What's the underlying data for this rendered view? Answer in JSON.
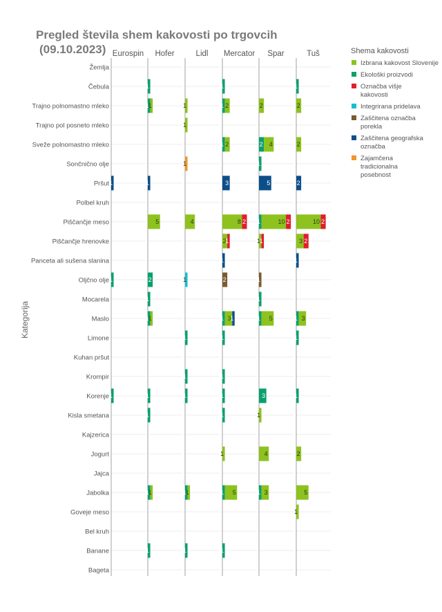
{
  "chart_data": {
    "type": "bar",
    "orientation": "horizontal",
    "stacked": true,
    "title": "Pregled števila shem kakovosti po trgovcih",
    "subtitle": "(09.10.2023)",
    "ylabel": "Kategorija",
    "legend_title": "Shema kakovosti",
    "legend_position": "right",
    "xlim": [
      0,
      12
    ],
    "grid": true,
    "facets": [
      "Eurospin",
      "Hofer",
      "Lidl",
      "Mercator",
      "Spar",
      "Tuš"
    ],
    "categories": [
      "Žemlja",
      "Čebula",
      "Trajno polnomastno mleko",
      "Trajno pol posneto mleko",
      "Sveže polnomastno mleko",
      "Sončnično olje",
      "Pršut",
      "Polbel kruh",
      "Piščančje meso",
      "Piščančje hrenovke",
      "Panceta ali sušena slanina",
      "Oljčno olje",
      "Mocarela",
      "Maslo",
      "Limone",
      "Kuhan pršut",
      "Krompir",
      "Korenje",
      "Kisla smetana",
      "Kajzerica",
      "Jogurt",
      "Jajca",
      "Jabolka",
      "Goveje meso",
      "Bel kruh",
      "Banane",
      "Bageta"
    ],
    "series": [
      {
        "name": "Ekološki proizvodi",
        "color": "#0aa06e"
      },
      {
        "name": "Integrirana pridelava",
        "color": "#17becf"
      },
      {
        "name": "Izbrana kakovost Slovenije",
        "color": "#8dc21f"
      },
      {
        "name": "Zaščitena označba porekla",
        "color": "#7b5a2e"
      },
      {
        "name": "Zaščitena geografska označba",
        "color": "#0b4f8a"
      },
      {
        "name": "Zajamčena tradicionalna posebnost",
        "color": "#f0962d"
      },
      {
        "name": "Označba višje kakovosti",
        "color": "#e01e2a"
      }
    ],
    "legend_order": [
      "Izbrana kakovost Slovenije",
      "Ekološki proizvodi",
      "Označba višje kakovosti",
      "Integrirana pridelava",
      "Zaščitena označba porekla",
      "Zaščitena geografska označba",
      "Zajamčena tradicionalna posebnost"
    ],
    "data": {
      "Eurospin": {
        "Pršut": {
          "Zaščitena geografska označba": 1
        },
        "Oljčno olje": {
          "Ekološki proizvodi": 1
        },
        "Korenje": {
          "Ekološki proizvodi": 1
        }
      },
      "Hofer": {
        "Čebula": {
          "Ekološki proizvodi": 1
        },
        "Trajno polnomastno mleko": {
          "Ekološki proizvodi": 1,
          "Izbrana kakovost Slovenije": 1
        },
        "Pršut": {
          "Zaščitena geografska označba": 1
        },
        "Piščančje meso": {
          "Izbrana kakovost Slovenije": 5
        },
        "Oljčno olje": {
          "Ekološki proizvodi": 2
        },
        "Mocarela": {
          "Ekološki proizvodi": 1
        },
        "Maslo": {
          "Ekološki proizvodi": 1,
          "Izbrana kakovost Slovenije": 1
        },
        "Korenje": {
          "Ekološki proizvodi": 1
        },
        "Kisla smetana": {
          "Ekološki proizvodi": 1
        },
        "Jabolka": {
          "Ekološki proizvodi": 1,
          "Izbrana kakovost Slovenije": 1
        },
        "Banane": {
          "Ekološki proizvodi": 1
        }
      },
      "Lidl": {
        "Trajno polnomastno mleko": {
          "Izbrana kakovost Slovenije": 1
        },
        "Trajno pol posneto mleko": {
          "Izbrana kakovost Slovenije": 1
        },
        "Sončnično olje": {
          "Zajamčena tradicionalna posebnost": 1
        },
        "Piščančje meso": {
          "Izbrana kakovost Slovenije": 4
        },
        "Oljčno olje": {
          "Integrirana pridelava": 1
        },
        "Limone": {
          "Ekološki proizvodi": 1
        },
        "Krompir": {
          "Ekološki proizvodi": 1
        },
        "Korenje": {
          "Ekološki proizvodi": 1
        },
        "Jabolka": {
          "Ekološki proizvodi": 1,
          "Izbrana kakovost Slovenije": 1
        },
        "Banane": {
          "Ekološki proizvodi": 1
        }
      },
      "Mercator": {
        "Čebula": {
          "Ekološki proizvodi": 1
        },
        "Trajno polnomastno mleko": {
          "Ekološki proizvodi": 1,
          "Izbrana kakovost Slovenije": 2
        },
        "Sveže polnomastno mleko": {
          "Ekološki proizvodi": 1,
          "Izbrana kakovost Slovenije": 2
        },
        "Pršut": {
          "Zaščitena geografska označba": 3
        },
        "Piščančje meso": {
          "Izbrana kakovost Slovenije": 8,
          "Označba višje kakovosti": 2
        },
        "Piščančje hrenovke": {
          "Izbrana kakovost Slovenije": 2,
          "Označba višje kakovosti": 1
        },
        "Panceta ali sušena slanina": {
          "Zaščitena geografska označba": 1
        },
        "Oljčno olje": {
          "Zaščitena označba porekla": 2
        },
        "Maslo": {
          "Ekološki proizvodi": 1,
          "Izbrana kakovost Slovenije": 3,
          "Zaščitena geografska označba": 1
        },
        "Limone": {
          "Ekološki proizvodi": 1
        },
        "Krompir": {
          "Ekološki proizvodi": 1
        },
        "Korenje": {
          "Ekološki proizvodi": 1
        },
        "Kisla smetana": {
          "Ekološki proizvodi": 1
        },
        "Jogurt": {
          "Izbrana kakovost Slovenije": 1
        },
        "Jabolka": {
          "Ekološki proizvodi": 1,
          "Izbrana kakovost Slovenije": 5
        },
        "Banane": {
          "Ekološki proizvodi": 1
        }
      },
      "Spar": {
        "Trajno polnomastno mleko": {
          "Izbrana kakovost Slovenije": 2
        },
        "Sveže polnomastno mleko": {
          "Ekološki proizvodi": 2,
          "Izbrana kakovost Slovenije": 4
        },
        "Sončnično olje": {
          "Ekološki proizvodi": 1
        },
        "Pršut": {
          "Zaščitena geografska označba": 5
        },
        "Piščančje meso": {
          "Ekološki proizvodi": 1,
          "Izbrana kakovost Slovenije": 10,
          "Označba višje kakovosti": 2
        },
        "Piščančje hrenovke": {
          "Izbrana kakovost Slovenije": 1,
          "Označba višje kakovosti": 1
        },
        "Oljčno olje": {
          "Zaščitena označba porekla": 1
        },
        "Mocarela": {
          "Ekološki proizvodi": 1
        },
        "Maslo": {
          "Ekološki proizvodi": 1,
          "Izbrana kakovost Slovenije": 5
        },
        "Korenje": {
          "Ekološki proizvodi": 3
        },
        "Kisla smetana": {
          "Izbrana kakovost Slovenije": 1
        },
        "Jogurt": {
          "Izbrana kakovost Slovenije": 4
        },
        "Jabolka": {
          "Ekološki proizvodi": 1,
          "Izbrana kakovost Slovenije": 3
        }
      },
      "Tuš": {
        "Čebula": {
          "Ekološki proizvodi": 1
        },
        "Trajno polnomastno mleko": {
          "Izbrana kakovost Slovenije": 2
        },
        "Sveže polnomastno mleko": {
          "Izbrana kakovost Slovenije": 2
        },
        "Pršut": {
          "Zaščitena geografska označba": 2
        },
        "Piščančje meso": {
          "Izbrana kakovost Slovenije": 10,
          "Označba višje kakovosti": 2
        },
        "Piščančje hrenovke": {
          "Izbrana kakovost Slovenije": 3,
          "Označba višje kakovosti": 2
        },
        "Panceta ali sušena slanina": {
          "Zaščitena geografska označba": 1
        },
        "Maslo": {
          "Ekološki proizvodi": 1,
          "Izbrana kakovost Slovenije": 3
        },
        "Limone": {
          "Ekološki proizvodi": 1
        },
        "Korenje": {
          "Ekološki proizvodi": 1
        },
        "Jogurt": {
          "Izbrana kakovost Slovenije": 2
        },
        "Jabolka": {
          "Izbrana kakovost Slovenije": 5
        },
        "Goveje meso": {
          "Izbrana kakovost Slovenije": 1
        }
      }
    }
  }
}
